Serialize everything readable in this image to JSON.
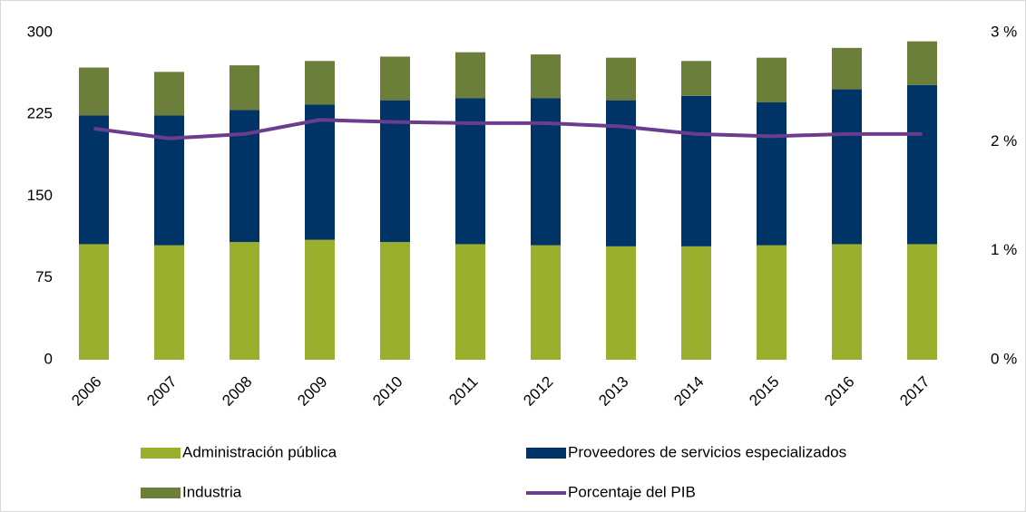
{
  "chart_data": {
    "type": "bar",
    "stacked": true,
    "categories": [
      "2006",
      "2007",
      "2008",
      "2009",
      "2010",
      "2011",
      "2012",
      "2013",
      "2014",
      "2015",
      "2016",
      "2017"
    ],
    "series": [
      {
        "name": "Administración pública",
        "color": "#9aaf2e",
        "values": [
          106,
          105,
          108,
          110,
          108,
          106,
          105,
          104,
          104,
          105,
          106,
          106
        ]
      },
      {
        "name": "Proveedores de servicios especializados",
        "color": "#003366",
        "values": [
          118,
          119,
          121,
          124,
          130,
          134,
          135,
          134,
          138,
          131,
          142,
          146
        ]
      },
      {
        "name": "Industria",
        "color": "#6b7f3a",
        "values": [
          44,
          40,
          41,
          40,
          40,
          42,
          40,
          39,
          32,
          41,
          38,
          40
        ]
      },
      {
        "name": "Porcentaje del PIB",
        "color": "#6a3d8f",
        "type": "line",
        "axis": "y2",
        "values": [
          2.12,
          2.03,
          2.07,
          2.2,
          2.18,
          2.17,
          2.17,
          2.14,
          2.07,
          2.05,
          2.07,
          2.07
        ]
      }
    ],
    "ylim": [
      0,
      300
    ],
    "yticks": [
      0,
      75,
      150,
      225,
      300
    ],
    "y2lim": [
      0,
      3
    ],
    "y2ticks": [
      {
        "value": 0,
        "label": "0 %"
      },
      {
        "value": 1,
        "label": "1 %"
      },
      {
        "value": 2,
        "label": "2 %"
      },
      {
        "value": 3,
        "label": "3 %"
      }
    ],
    "grid": false
  }
}
